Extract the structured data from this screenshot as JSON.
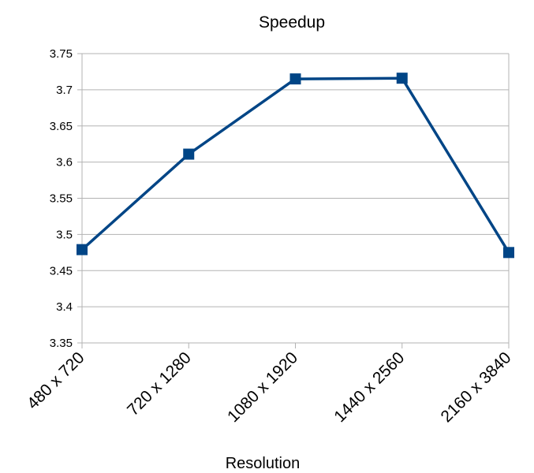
{
  "chart_data": {
    "type": "line",
    "title": "Speedup",
    "xlabel": "Resolution",
    "ylabel": "",
    "categories": [
      "480 x 720",
      "720 x 1280",
      "1080 x 1920",
      "1440 x 2560",
      "2160 x 3840"
    ],
    "series": [
      {
        "values": [
          3.479,
          3.611,
          3.715,
          3.716,
          3.475
        ]
      }
    ],
    "ylim": [
      3.35,
      3.75
    ],
    "yticks": [
      "3.35",
      "3.4",
      "3.45",
      "3.5",
      "3.55",
      "3.6",
      "3.65",
      "3.7",
      "3.75"
    ],
    "grid": true,
    "legend": "none",
    "marker": "square",
    "colors": {
      "series": "#004586",
      "grid": "#b3b3b3",
      "axis": "#b3b3b3"
    }
  }
}
